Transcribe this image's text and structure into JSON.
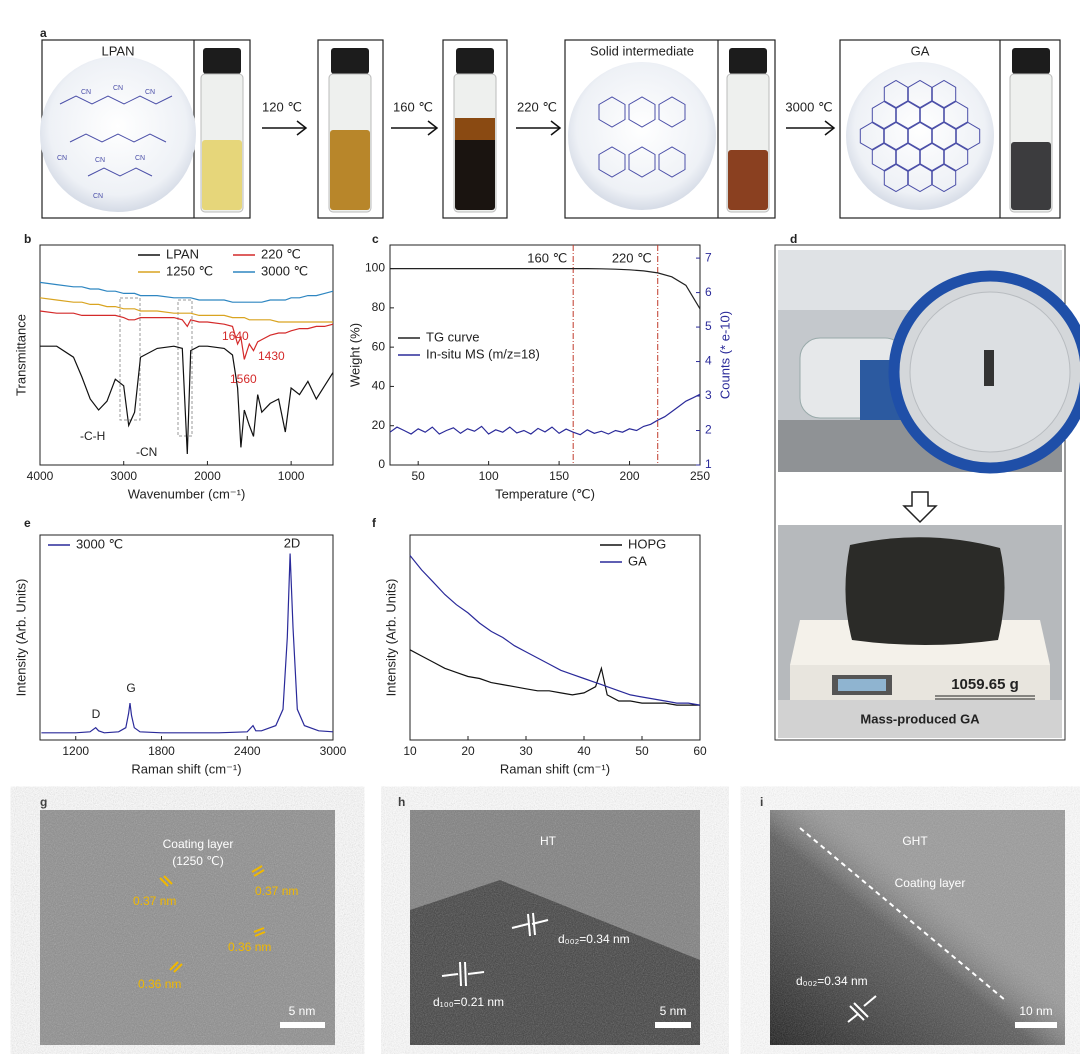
{
  "panel_labels": [
    "a",
    "b",
    "c",
    "d",
    "e",
    "f",
    "g",
    "h",
    "i"
  ],
  "scheme": {
    "titles": [
      "LPAN",
      "Solid intermediate",
      "GA"
    ],
    "arrows": [
      "120 ℃",
      "160 ℃",
      "220 ℃",
      "3000 ℃"
    ],
    "molecule_labels": [
      "CN",
      "CN",
      "CN",
      "CN",
      "CN",
      "CN",
      "CN"
    ]
  },
  "chart_data": [
    {
      "type": "line",
      "xlabel": "Wavenumber (cm⁻¹)",
      "ylabel": "Transmittance",
      "x": [
        4000,
        3800,
        3600,
        3500,
        3400,
        3300,
        3200,
        3100,
        3000,
        2940,
        2870,
        2800,
        2600,
        2400,
        2300,
        2240,
        2200,
        2100,
        2000,
        1800,
        1700,
        1640,
        1600,
        1560,
        1500,
        1450,
        1400,
        1350,
        1250,
        1150,
        1070,
        1000,
        900,
        800,
        700,
        600,
        500
      ],
      "xlim": [
        4000,
        500
      ],
      "xticks": [
        4000,
        3000,
        2000,
        1000
      ],
      "ylim": [
        0,
        10
      ],
      "legend": "upper right",
      "legend_columns": 2,
      "series": [
        {
          "name": "LPAN",
          "color": "#111111",
          "values": [
            5.4,
            5.4,
            4.9,
            4.0,
            3.0,
            2.5,
            2.9,
            3.9,
            3.6,
            1.8,
            2.4,
            4.9,
            5.3,
            5.4,
            5.3,
            0.5,
            5.2,
            5.4,
            5.4,
            5.3,
            5.0,
            3.5,
            0.8,
            2.5,
            1.8,
            1.3,
            3.2,
            2.4,
            2.8,
            3.0,
            1.5,
            3.5,
            3.2,
            3.8,
            3.0,
            3.6,
            4.2
          ]
        },
        {
          "name": "220 ℃",
          "color": "#d42a2a",
          "values": [
            7.0,
            6.9,
            6.9,
            6.8,
            6.8,
            6.8,
            6.8,
            6.8,
            6.7,
            6.6,
            6.6,
            6.7,
            6.7,
            6.7,
            6.6,
            6.3,
            6.6,
            6.5,
            6.5,
            6.4,
            6.3,
            5.5,
            5.8,
            4.8,
            5.5,
            5.2,
            5.6,
            5.7,
            5.9,
            6.0,
            6.0,
            6.1,
            6.2,
            6.2,
            6.3,
            6.3,
            6.4
          ]
        },
        {
          "name": "1250 ℃",
          "color": "#d9a421",
          "values": [
            7.6,
            7.5,
            7.4,
            7.4,
            7.3,
            7.3,
            7.2,
            7.2,
            7.1,
            7.1,
            7.1,
            7.0,
            7.0,
            6.9,
            6.9,
            6.9,
            6.9,
            6.8,
            6.8,
            6.8,
            6.7,
            6.7,
            6.7,
            6.7,
            6.6,
            6.6,
            6.6,
            6.6,
            6.6,
            6.5,
            6.5,
            6.5,
            6.5,
            6.5,
            6.5,
            6.5,
            6.5
          ]
        },
        {
          "name": "3000 ℃",
          "color": "#2e86c1",
          "values": [
            8.3,
            8.2,
            8.1,
            8.1,
            8.0,
            8.0,
            7.9,
            7.9,
            7.8,
            7.8,
            7.8,
            7.7,
            7.7,
            7.6,
            7.6,
            7.6,
            7.6,
            7.5,
            7.5,
            7.5,
            7.4,
            7.4,
            7.4,
            7.4,
            7.4,
            7.4,
            7.4,
            7.4,
            7.5,
            7.5,
            7.5,
            7.6,
            7.6,
            7.7,
            7.7,
            7.8,
            7.9
          ]
        }
      ],
      "annotations": [
        "1640",
        "1430",
        "1560",
        "-C-H",
        "-CN"
      ]
    },
    {
      "type": "line",
      "xlabel": "Temperature (℃)",
      "ylabel": "Weight (%)",
      "y2label": "Counts (* e-10)",
      "xlim": [
        30,
        250
      ],
      "xticks": [
        50,
        100,
        150,
        200,
        250
      ],
      "ylim": [
        0,
        112
      ],
      "yticks": [
        0,
        20,
        40,
        60,
        80,
        100
      ],
      "y2lim": [
        1,
        7.38
      ],
      "y2ticks": [
        1,
        2,
        3,
        4,
        5,
        6,
        7
      ],
      "legend": "center left",
      "vlines": [
        {
          "value": 160,
          "label": "160 ℃"
        },
        {
          "value": 220,
          "label": "220 ℃"
        }
      ],
      "vline_color": "#c0392b",
      "series": [
        {
          "name": "TG curve",
          "color": "#222222",
          "x": [
            30,
            40,
            50,
            60,
            70,
            80,
            90,
            100,
            110,
            120,
            130,
            140,
            150,
            160,
            170,
            180,
            190,
            200,
            210,
            220,
            230,
            240,
            250
          ],
          "values": [
            100,
            100,
            100,
            100,
            100,
            100,
            100,
            100,
            100,
            100,
            100,
            100,
            100,
            100,
            100,
            99.9,
            99.7,
            99.4,
            98.8,
            97.8,
            95.8,
            91.5,
            79.5
          ]
        },
        {
          "name": "In-situ MS (m/z=18)",
          "color": "#2b2b9a",
          "axis": "y2",
          "x": [
            30,
            35,
            40,
            45,
            50,
            55,
            60,
            65,
            70,
            75,
            80,
            85,
            90,
            95,
            100,
            105,
            110,
            115,
            120,
            125,
            130,
            135,
            140,
            145,
            150,
            155,
            160,
            165,
            170,
            175,
            180,
            185,
            190,
            195,
            200,
            205,
            210,
            215,
            220,
            225,
            230,
            235,
            240,
            245,
            250
          ],
          "values": [
            1.95,
            2.1,
            2.0,
            1.9,
            2.05,
            1.95,
            2.1,
            1.9,
            2.0,
            2.08,
            1.92,
            2.05,
            1.98,
            2.12,
            1.9,
            2.02,
            1.95,
            2.1,
            1.93,
            2.0,
            1.9,
            2.06,
            1.96,
            2.1,
            1.92,
            2.04,
            1.95,
            1.88,
            2.02,
            1.92,
            1.98,
            1.9,
            2.0,
            1.95,
            2.05,
            2.0,
            2.12,
            2.18,
            2.3,
            2.4,
            2.55,
            2.7,
            2.85,
            2.95,
            3.05
          ]
        }
      ]
    },
    {
      "type": "line",
      "xlabel": "Raman shift (cm⁻¹)",
      "ylabel": "Intensity (Arb. Units)",
      "x": [
        960,
        1100,
        1200,
        1300,
        1340,
        1360,
        1400,
        1500,
        1550,
        1570,
        1580,
        1590,
        1610,
        1650,
        1800,
        2000,
        2200,
        2400,
        2440,
        2460,
        2500,
        2600,
        2650,
        2680,
        2700,
        2720,
        2750,
        2800,
        2900,
        3000
      ],
      "xlim": [
        950,
        3000
      ],
      "xticks": [
        1200,
        1800,
        2400,
        3000
      ],
      "ylim": [
        0,
        10
      ],
      "legend": "upper left",
      "series": [
        {
          "name": "3000 ℃",
          "color": "#2a2a9a",
          "values": [
            0.35,
            0.35,
            0.35,
            0.4,
            0.6,
            0.45,
            0.35,
            0.4,
            0.6,
            1.3,
            1.8,
            1.2,
            0.6,
            0.4,
            0.35,
            0.35,
            0.35,
            0.4,
            0.7,
            0.45,
            0.45,
            0.7,
            1.5,
            5.0,
            9.1,
            5.5,
            1.5,
            0.7,
            0.45,
            0.4
          ]
        }
      ],
      "annotations": [
        "D",
        "G",
        "2D"
      ]
    },
    {
      "type": "line",
      "xlabel": "Raman shift (cm⁻¹)",
      "ylabel": "Intensity (Arb. Units)",
      "x": [
        10,
        12,
        14,
        16,
        18,
        20,
        22,
        24,
        26,
        28,
        30,
        32,
        34,
        36,
        38,
        40,
        42,
        43,
        44,
        46,
        48,
        50,
        52,
        54,
        56,
        58,
        60
      ],
      "xlim": [
        10,
        60
      ],
      "xticks": [
        10,
        20,
        30,
        40,
        50,
        60
      ],
      "ylim": [
        0,
        10
      ],
      "legend": "upper right",
      "series": [
        {
          "name": "HOPG",
          "color": "#111111",
          "values": [
            4.4,
            4.1,
            3.8,
            3.5,
            3.3,
            3.1,
            3.0,
            2.8,
            2.7,
            2.6,
            2.5,
            2.4,
            2.4,
            2.3,
            2.2,
            2.3,
            2.6,
            3.5,
            2.2,
            1.9,
            1.9,
            1.8,
            1.8,
            1.8,
            1.7,
            1.7,
            1.7
          ]
        },
        {
          "name": "GA",
          "color": "#2a2a9a",
          "values": [
            9.0,
            8.3,
            7.7,
            7.1,
            6.6,
            6.2,
            5.7,
            5.3,
            5.0,
            4.6,
            4.3,
            4.0,
            3.7,
            3.4,
            3.2,
            3.0,
            2.8,
            2.7,
            2.6,
            2.4,
            2.2,
            2.1,
            2.0,
            1.9,
            1.8,
            1.8,
            1.7
          ]
        }
      ]
    }
  ],
  "photo": {
    "scale_reading": "1059.65 g",
    "caption": "Mass-produced GA"
  },
  "tem": [
    {
      "labels": [
        "Coating layer",
        "(1250 ℃)",
        "0.37 nm",
        "0.37 nm",
        "0.36 nm",
        "0.36 nm"
      ],
      "scale_bar": "5 nm"
    },
    {
      "labels": [
        "HT",
        "d₀₀₂=0.34 nm",
        "d₁₀₀=0.21 nm"
      ],
      "scale_bar": "5 nm"
    },
    {
      "labels": [
        "GHT",
        "Coating layer",
        "d₀₀₂=0.34 nm"
      ],
      "scale_bar": "10 nm"
    }
  ]
}
